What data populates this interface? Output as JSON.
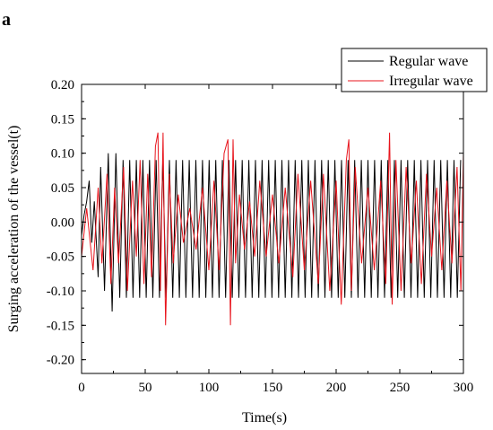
{
  "panel_label": "a",
  "chart_data": {
    "type": "line",
    "title": "",
    "xlabel": "Time(s)",
    "ylabel": "Surging acceleration of the vessel(t)",
    "xlim": [
      0,
      300
    ],
    "ylim": [
      -0.22,
      0.2
    ],
    "x_ticks": [
      "0",
      "50",
      "100",
      "150",
      "200",
      "250",
      "300"
    ],
    "y_ticks": [
      "0.20",
      "0.15",
      "0.10",
      "0.05",
      "0.00",
      "-0.05",
      "-0.10",
      "-0.15",
      "-0.20"
    ],
    "grid": false,
    "legend_position": "top-right",
    "series": [
      {
        "name": "Regular wave",
        "color": "#000000",
        "period_s": 5.2,
        "typical_peak": 0.09,
        "typical_trough": -0.11,
        "x": [
          0,
          2,
          4,
          6,
          8,
          10,
          13,
          15,
          18,
          21,
          24,
          27,
          30
        ],
        "y": [
          -0.02,
          0.01,
          0.03,
          0.06,
          -0.03,
          0.03,
          -0.08,
          0.08,
          -0.1,
          0.1,
          -0.13,
          0.1,
          -0.11
        ]
      },
      {
        "name": "Irregular wave",
        "color": "#e8141c",
        "x": [
          0,
          4,
          9,
          13,
          16,
          20,
          23,
          26,
          29,
          33,
          36,
          40,
          43,
          46,
          49,
          52,
          55,
          58,
          60,
          62,
          64,
          66,
          69,
          72,
          76,
          80,
          85,
          90,
          95,
          100,
          104,
          108,
          112,
          115,
          117,
          119,
          121,
          124,
          128,
          132,
          136,
          140,
          145,
          150,
          155,
          160,
          166,
          170,
          175,
          180,
          186,
          190,
          195,
          200,
          204,
          208,
          210,
          212,
          215,
          220,
          225,
          230,
          235,
          239,
          242,
          244,
          247,
          251,
          255,
          259,
          263,
          267,
          271,
          275,
          279,
          283,
          287,
          291,
          295,
          298,
          300
        ],
        "y": [
          -0.05,
          0.02,
          -0.07,
          0.05,
          -0.06,
          0.07,
          -0.09,
          0.05,
          -0.06,
          0.08,
          -0.1,
          0.06,
          -0.05,
          0.09,
          -0.09,
          0.07,
          -0.08,
          0.11,
          0.13,
          -0.1,
          0.13,
          -0.15,
          0.07,
          -0.06,
          0.04,
          -0.03,
          0.02,
          -0.04,
          0.05,
          -0.07,
          0.06,
          -0.07,
          0.1,
          0.12,
          -0.15,
          0.12,
          -0.06,
          0.04,
          -0.04,
          0.03,
          -0.05,
          0.06,
          -0.05,
          0.04,
          -0.06,
          0.05,
          -0.08,
          0.07,
          -0.07,
          0.06,
          -0.09,
          0.07,
          -0.1,
          0.06,
          -0.12,
          0.09,
          0.12,
          -0.1,
          0.08,
          -0.06,
          0.05,
          -0.07,
          0.06,
          -0.09,
          0.13,
          -0.12,
          0.09,
          -0.1,
          0.08,
          -0.06,
          0.06,
          -0.09,
          0.07,
          -0.05,
          0.05,
          -0.07,
          0.06,
          -0.06,
          0.08,
          -0.1,
          0.1
        ]
      }
    ]
  }
}
